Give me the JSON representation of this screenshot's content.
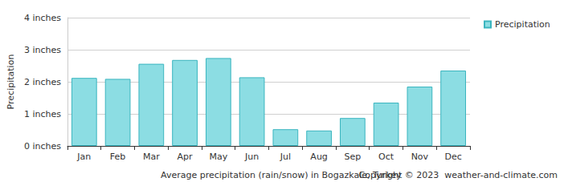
{
  "chart_data": {
    "type": "bar",
    "xlabel": "Average precipitation (rain/snow) in Bogazkale, Turkey",
    "ylabel": "Precipitation",
    "annotations": [
      "Copyright © 2023  weather-and-climate.com"
    ],
    "categories": [
      "Jan",
      "Feb",
      "Mar",
      "Apr",
      "May",
      "Jun",
      "Jul",
      "Aug",
      "Sep",
      "Oct",
      "Nov",
      "Dec"
    ],
    "series": [
      {
        "name": "Precipitation",
        "color": "#8cdde3",
        "values": [
          2.12,
          2.09,
          2.56,
          2.68,
          2.74,
          2.14,
          0.52,
          0.48,
          0.87,
          1.35,
          1.85,
          2.35
        ]
      }
    ],
    "ylim": [
      0,
      4
    ],
    "yticks": [
      {
        "value": 0,
        "label": "0 inches"
      },
      {
        "value": 1,
        "label": "1 inches"
      },
      {
        "value": 2,
        "label": "2 inches"
      },
      {
        "value": 3,
        "label": "3 inches"
      },
      {
        "value": 4,
        "label": "4 inches"
      }
    ],
    "grid": true,
    "legend": "right"
  }
}
